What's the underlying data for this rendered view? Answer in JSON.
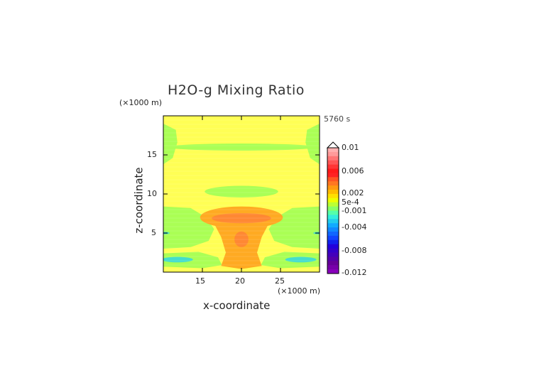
{
  "chart_data": {
    "type": "heatmap",
    "title": "H2O-g Mixing Ratio",
    "xlabel": "x-coordinate",
    "ylabel": "z-coordinate",
    "x_unit": "(×1000 m)",
    "y_unit": "(×1000 m)",
    "time_label": "5760 s",
    "xlim": [
      10,
      30
    ],
    "ylim": [
      0,
      20
    ],
    "x_ticks": [
      "15",
      "20",
      "25"
    ],
    "y_ticks": [
      "5",
      "10",
      "15"
    ],
    "colorbar": {
      "labels": [
        "0.01",
        "0.006",
        "0.002",
        "5e-4",
        "-0.001",
        "-0.004",
        "-0.008",
        "-0.012"
      ],
      "min": -0.012,
      "max": 0.01,
      "extend_top": true
    },
    "colors": {
      "background_field": "#ffff55",
      "green": "#aaff55",
      "cyan": "#44ddcc",
      "orange": "#ffaa22",
      "red_orange": "#ff8833"
    }
  }
}
